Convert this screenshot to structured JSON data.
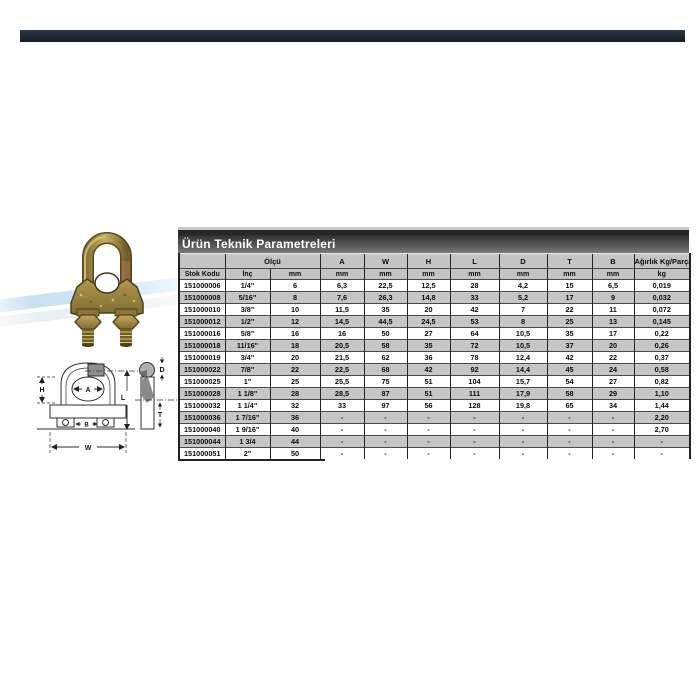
{
  "top_bar": {
    "color": "#1d2733"
  },
  "panel": {
    "title": "Ürün Teknik Parametreleri"
  },
  "table": {
    "group_headers": [
      {
        "label": "",
        "span": 1
      },
      {
        "label": "Ölçü",
        "span": 2
      },
      {
        "label": "A",
        "span": 1
      },
      {
        "label": "W",
        "span": 1
      },
      {
        "label": "H",
        "span": 1
      },
      {
        "label": "L",
        "span": 1
      },
      {
        "label": "D",
        "span": 1
      },
      {
        "label": "T",
        "span": 1
      },
      {
        "label": "B",
        "span": 1
      },
      {
        "label": "Ağırlık Kg/Parça",
        "span": 1
      }
    ],
    "units": [
      "Stok Kodu",
      "İnç",
      "mm",
      "mm",
      "mm",
      "mm",
      "mm",
      "mm",
      "mm",
      "mm",
      "kg"
    ],
    "rows": [
      [
        "151000006",
        "1/4\"",
        "6",
        "6,3",
        "22,5",
        "12,5",
        "28",
        "4,2",
        "15",
        "6,5",
        "0,019"
      ],
      [
        "151000008",
        "5/16\"",
        "8",
        "7,6",
        "26,3",
        "14,8",
        "33",
        "5,2",
        "17",
        "9",
        "0,032"
      ],
      [
        "151000010",
        "3/8\"",
        "10",
        "11,5",
        "35",
        "20",
        "42",
        "7",
        "22",
        "11",
        "0,072"
      ],
      [
        "151000012",
        "1/2\"",
        "12",
        "14,5",
        "44,5",
        "24,5",
        "53",
        "8",
        "25",
        "13",
        "0,145"
      ],
      [
        "151000016",
        "5/8\"",
        "16",
        "16",
        "50",
        "27",
        "64",
        "10,5",
        "35",
        "17",
        "0,22"
      ],
      [
        "151000018",
        "11/16\"",
        "18",
        "20,5",
        "58",
        "35",
        "72",
        "10,5",
        "37",
        "20",
        "0,26"
      ],
      [
        "151000019",
        "3/4\"",
        "20",
        "21,5",
        "62",
        "36",
        "78",
        "12,4",
        "42",
        "22",
        "0,37"
      ],
      [
        "151000022",
        "7/8\"",
        "22",
        "22,5",
        "68",
        "42",
        "92",
        "14,4",
        "45",
        "24",
        "0,58"
      ],
      [
        "151000025",
        "1\"",
        "25",
        "25,5",
        "75",
        "51",
        "104",
        "15,7",
        "54",
        "27",
        "0,82"
      ],
      [
        "151000028",
        "1 1/8\"",
        "28",
        "28,5",
        "87",
        "51",
        "111",
        "17,9",
        "58",
        "29",
        "1,10"
      ],
      [
        "151000032",
        "1 1/4\"",
        "32",
        "33",
        "97",
        "56",
        "128",
        "19,8",
        "65",
        "34",
        "1,44"
      ],
      [
        "151000036",
        "1 7/16\"",
        "36",
        "-",
        "-",
        "-",
        "-",
        "-",
        "-",
        "-",
        "2,20"
      ],
      [
        "151000040",
        "1 9/16\"",
        "40",
        "-",
        "-",
        "-",
        "-",
        "-",
        "-",
        "-",
        "2,70"
      ],
      [
        "151000044",
        "1 3/4",
        "44",
        "-",
        "-",
        "-",
        "-",
        "-",
        "-",
        "-",
        "-"
      ],
      [
        "151000051",
        "2\"",
        "50",
        "-",
        "-",
        "-",
        "-",
        "-",
        "-",
        "-",
        "-"
      ]
    ]
  },
  "drawing": {
    "labels": {
      "a": "A",
      "h": "H",
      "b": "B",
      "w": "W",
      "d": "D",
      "l": "L",
      "t": "T"
    }
  },
  "colors": {
    "row_alt": "#c6c6c6",
    "header_bg": "#c4c4c4",
    "title_gradient_top": "#303030",
    "title_gradient_bottom": "#787878",
    "clip_gold": "#a9914a",
    "clip_copper": "#b5795a"
  }
}
